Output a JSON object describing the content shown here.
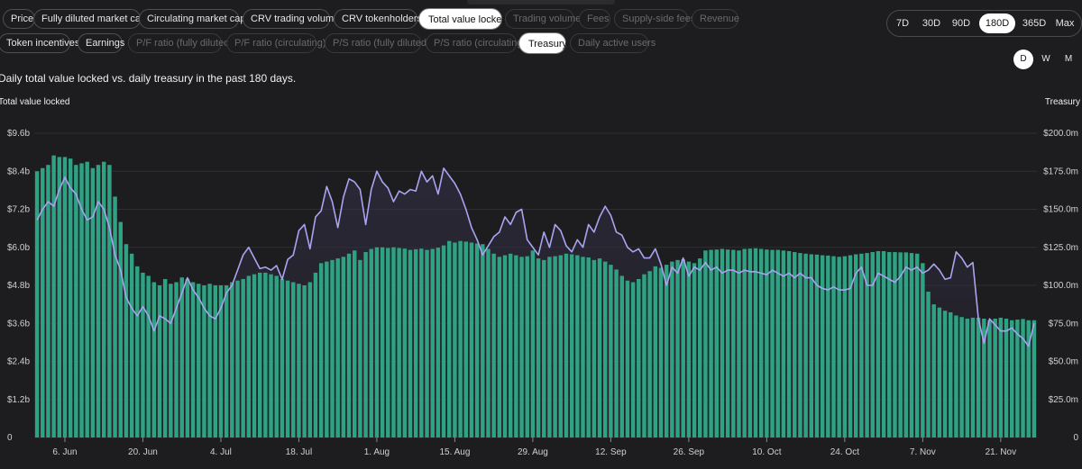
{
  "metric_tabs_row1": [
    {
      "label": "Price",
      "state": "normal"
    },
    {
      "label": "Fully diluted market cap",
      "state": "normal"
    },
    {
      "label": "Circulating market cap",
      "state": "normal"
    },
    {
      "label": "CRV trading volume",
      "state": "normal"
    },
    {
      "label": "CRV tokenholders",
      "state": "normal"
    },
    {
      "label": "Total value locked",
      "state": "active"
    },
    {
      "label": "Trading volume",
      "state": "dim"
    },
    {
      "label": "Fees",
      "state": "dim"
    },
    {
      "label": "Supply-side fees",
      "state": "dim"
    },
    {
      "label": "Revenue",
      "state": "dim"
    }
  ],
  "metric_tabs_row2": [
    {
      "label": "Token incentives",
      "state": "normal"
    },
    {
      "label": "Earnings",
      "state": "normal"
    },
    {
      "label": "P/F ratio (fully diluted)",
      "state": "dim"
    },
    {
      "label": "P/F ratio (circulating)",
      "state": "dim"
    },
    {
      "label": "P/S ratio (fully diluted)",
      "state": "dim"
    },
    {
      "label": "P/S ratio (circulating)",
      "state": "dim"
    },
    {
      "label": "Treasury",
      "state": "active"
    },
    {
      "label": "Daily active users",
      "state": "dim"
    }
  ],
  "range_options": [
    "7D",
    "30D",
    "90D",
    "180D",
    "365D",
    "Max"
  ],
  "range_selected": "180D",
  "granularity_options": [
    "D",
    "W",
    "M"
  ],
  "granularity_selected": "D",
  "subtitle": "Daily total value locked vs. daily treasury in the past 180 days.",
  "left_axis_title": "Total value locked",
  "right_axis_title": "Treasury",
  "colors": {
    "bar": "#2fa283",
    "line": "#a9a4f0",
    "area": "#2b2838",
    "background": "#1d1d1f"
  },
  "chart_data": {
    "type": "bar+line",
    "title": "Daily total value locked vs. daily treasury in the past 180 days.",
    "ylabel_left": "Total value locked",
    "ylabel_right": "Treasury",
    "y_left_ticks": [
      "0",
      "$1.2b",
      "$2.4b",
      "$3.6b",
      "$4.8b",
      "$6.0b",
      "$7.2b",
      "$8.4b",
      "$9.6b"
    ],
    "y_right_ticks": [
      "0",
      "$25.0m",
      "$50.0m",
      "$75.0m",
      "$100.0m",
      "$125.0m",
      "$150.0m",
      "$175.0m",
      "$200.0m"
    ],
    "ylim_left": [
      0,
      9.6
    ],
    "ylim_right": [
      0,
      200
    ],
    "x_tick_labels": [
      {
        "label": "6. Jun",
        "day": 5
      },
      {
        "label": "20. Jun",
        "day": 19
      },
      {
        "label": "4. Jul",
        "day": 33
      },
      {
        "label": "18. Jul",
        "day": 47
      },
      {
        "label": "1. Aug",
        "day": 61
      },
      {
        "label": "15. Aug",
        "day": 75
      },
      {
        "label": "29. Aug",
        "day": 89
      },
      {
        "label": "12. Sep",
        "day": 103
      },
      {
        "label": "26. Sep",
        "day": 117
      },
      {
        "label": "10. Oct",
        "day": 131
      },
      {
        "label": "24. Oct",
        "day": 145
      },
      {
        "label": "7. Nov",
        "day": 159
      },
      {
        "label": "21. Nov",
        "day": 173
      }
    ],
    "series": [
      {
        "name": "Total value locked",
        "unit": "billion USD",
        "type": "bar",
        "axis": "left",
        "values": [
          8.4,
          8.5,
          8.6,
          8.9,
          8.85,
          8.85,
          8.8,
          8.6,
          8.65,
          8.7,
          8.5,
          8.6,
          8.7,
          8.6,
          7.6,
          6.8,
          6.1,
          5.8,
          5.4,
          5.2,
          5.1,
          4.9,
          4.8,
          5.0,
          4.85,
          4.9,
          5.05,
          5.0,
          4.9,
          4.85,
          4.8,
          4.85,
          4.8,
          4.8,
          4.8,
          4.9,
          4.95,
          5.0,
          5.1,
          5.15,
          5.2,
          5.2,
          5.15,
          5.1,
          5.0,
          4.95,
          4.9,
          4.85,
          4.8,
          4.9,
          5.2,
          5.5,
          5.55,
          5.6,
          5.65,
          5.7,
          5.8,
          5.9,
          5.6,
          5.85,
          5.95,
          6.0,
          6.0,
          5.98,
          6.0,
          5.98,
          5.96,
          5.92,
          5.94,
          5.96,
          5.92,
          5.95,
          5.99,
          6.06,
          6.2,
          6.15,
          6.2,
          6.18,
          6.15,
          6.12,
          6.1,
          5.95,
          5.8,
          5.7,
          5.75,
          5.8,
          5.75,
          5.7,
          5.72,
          5.9,
          5.65,
          5.6,
          5.7,
          5.72,
          5.75,
          5.8,
          5.78,
          5.75,
          5.7,
          5.68,
          5.6,
          5.65,
          5.55,
          5.45,
          5.3,
          5.1,
          4.95,
          4.9,
          5.0,
          5.15,
          5.25,
          5.4,
          5.35,
          5.45,
          5.55,
          5.6,
          5.62,
          5.55,
          5.5,
          5.65,
          5.9,
          5.92,
          5.93,
          5.95,
          5.93,
          5.92,
          5.9,
          5.95,
          5.96,
          5.97,
          5.95,
          5.93,
          5.92,
          5.92,
          5.9,
          5.88,
          5.85,
          5.82,
          5.8,
          5.78,
          5.77,
          5.75,
          5.74,
          5.72,
          5.7,
          5.72,
          5.75,
          5.78,
          5.8,
          5.82,
          5.85,
          5.88,
          5.88,
          5.85,
          5.85,
          5.84,
          5.84,
          5.82,
          5.8,
          5.5,
          4.6,
          4.2,
          4.1,
          4.0,
          3.95,
          3.85,
          3.8,
          3.75,
          3.78,
          3.78,
          3.75,
          3.7,
          3.75,
          3.78,
          3.75,
          3.7,
          3.72,
          3.74,
          3.7,
          3.7
        ]
      },
      {
        "name": "Treasury",
        "unit": "million USD",
        "type": "line",
        "axis": "right",
        "values": [
          143,
          150,
          155,
          152,
          163,
          171,
          164,
          160,
          150,
          143,
          145,
          155,
          150,
          138,
          120,
          110,
          92,
          85,
          80,
          86,
          80,
          70,
          80,
          78,
          75,
          85,
          95,
          105,
          97,
          92,
          85,
          80,
          78,
          85,
          95,
          100,
          110,
          120,
          125,
          118,
          111,
          112,
          110,
          113,
          104,
          117,
          120,
          136,
          140,
          124,
          145,
          149,
          165,
          155,
          138,
          158,
          170,
          168,
          163,
          140,
          163,
          175,
          168,
          164,
          155,
          162,
          160,
          163,
          162,
          175,
          168,
          172,
          160,
          177,
          172,
          167,
          160,
          150,
          138,
          130,
          120,
          126,
          132,
          135,
          145,
          140,
          148,
          150,
          130,
          125,
          120,
          135,
          125,
          140,
          136,
          126,
          122,
          130,
          125,
          140,
          135,
          145,
          152,
          146,
          135,
          133,
          125,
          122,
          124,
          118,
          118,
          124,
          114,
          100,
          112,
          108,
          118,
          106,
          112,
          110,
          115,
          110,
          112,
          108,
          110,
          110,
          108,
          110,
          109,
          109,
          108,
          107,
          110,
          108,
          106,
          108,
          105,
          108,
          105,
          105,
          100,
          98,
          97,
          99,
          97,
          97,
          98,
          108,
          112,
          100,
          100,
          108,
          106,
          104,
          102,
          106,
          112,
          110,
          112,
          108,
          110,
          114,
          110,
          104,
          105,
          122,
          118,
          112,
          115,
          78,
          62,
          78,
          74,
          70,
          70,
          72,
          68,
          65,
          60,
          75
        ]
      }
    ]
  }
}
